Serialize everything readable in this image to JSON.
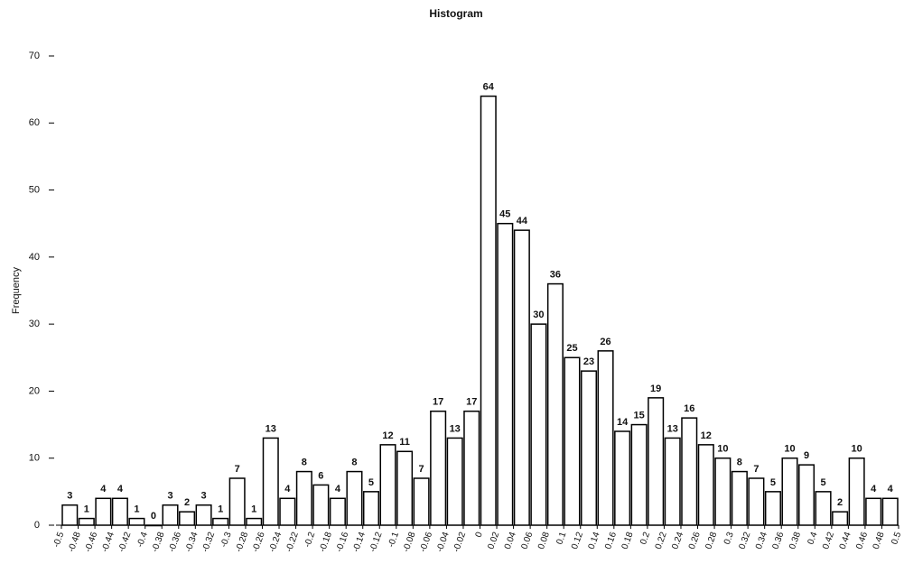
{
  "chart_data": {
    "type": "histogram",
    "title": "Histogram",
    "y_label": "Frequency",
    "bins": [
      -0.5,
      -0.48,
      -0.46,
      -0.44,
      -0.42,
      -0.4,
      -0.38,
      -0.36,
      -0.34,
      -0.32,
      -0.3,
      -0.28,
      -0.26,
      -0.24,
      -0.22,
      -0.2,
      -0.18,
      -0.16,
      -0.14,
      -0.12,
      -0.1,
      -0.08,
      -0.06,
      -0.04,
      -0.02,
      0,
      0.02,
      0.04,
      0.06,
      0.08,
      0.1,
      0.12,
      0.14,
      0.16,
      0.18,
      0.2,
      0.22,
      0.24,
      0.26,
      0.28,
      0.3,
      0.32,
      0.34,
      0.36,
      0.38,
      0.4,
      0.42,
      0.44,
      0.46,
      0.48,
      0.5
    ],
    "values": [
      3,
      1,
      4,
      4,
      1,
      0,
      3,
      2,
      3,
      1,
      7,
      1,
      13,
      4,
      8,
      6,
      4,
      8,
      5,
      12,
      11,
      7,
      17,
      13,
      17,
      64,
      45,
      44,
      30,
      36,
      25,
      23,
      26,
      14,
      15,
      19,
      13,
      16,
      12,
      10,
      8,
      7,
      5,
      10,
      9,
      5,
      2,
      10,
      4,
      4
    ],
    "color": "#ffffff",
    "edgecolor": "#000000",
    "xlim": [
      -0.5,
      0.5
    ],
    "xticks": [
      -0.5,
      -0.48,
      -0.46,
      -0.44,
      -0.42,
      -0.4,
      -0.38,
      -0.36,
      -0.34,
      -0.32,
      -0.3,
      -0.28,
      -0.26,
      -0.24,
      -0.22,
      -0.2,
      -0.18,
      -0.16,
      -0.14,
      -0.12,
      -0.1,
      -0.08,
      -0.06,
      -0.04,
      -0.02,
      0,
      0.02,
      0.04,
      0.06,
      0.08,
      0.1,
      0.12,
      0.14,
      0.16,
      0.18,
      0.2,
      0.22,
      0.24,
      0.26,
      0.28,
      0.3,
      0.32,
      0.34,
      0.36,
      0.38,
      0.4,
      0.42,
      0.44,
      0.46,
      0.48,
      0.5
    ],
    "ylim": [
      0,
      70
    ],
    "yticks": [
      0,
      10,
      20,
      30,
      40,
      50,
      60,
      70
    ],
    "grid": false
  }
}
